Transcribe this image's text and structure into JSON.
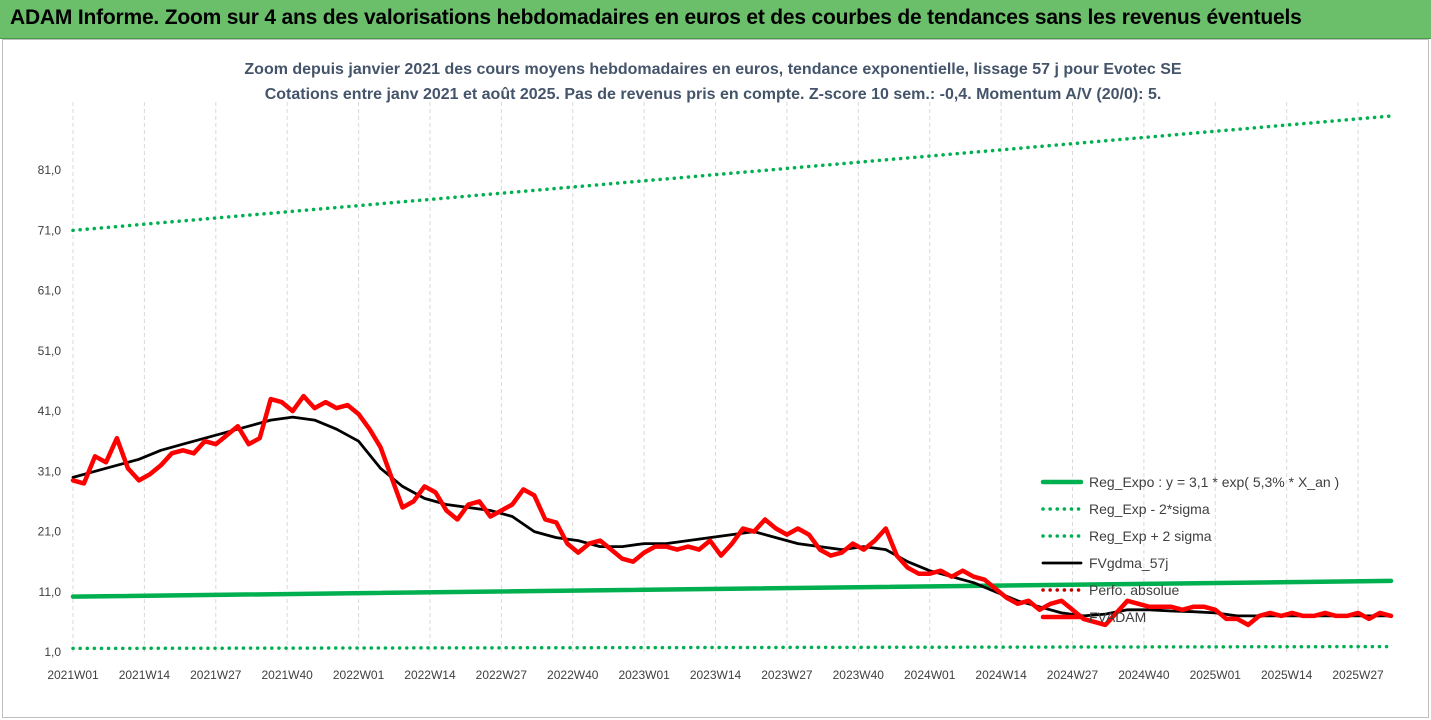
{
  "header": {
    "title": "ADAM Informe. Zoom sur 4 ans des valorisations hebdomadaires en euros et des courbes de tendances sans les revenus éventuels"
  },
  "colors": {
    "header_bg": "#6bbf6b",
    "trend": "#00b050",
    "smooth": "#000000",
    "price": "#ff0000",
    "perfo": "#c00000"
  },
  "chart_data": {
    "type": "line",
    "title_lines": [
      "Zoom depuis janvier 2021 des cours moyens hebdomadaires en euros, tendance exponentielle, lissage 57 j pour Evotec SE",
      "Cotations entre janv 2021 et août 2025. Pas de revenus pris en compte. Z-score 10 sem.: -0,4. Momentum A/V (20/0): 5."
    ],
    "x_tick_labels": [
      "2021W01",
      "2021W14",
      "2021W27",
      "2021W40",
      "2022W01",
      "2022W14",
      "2022W27",
      "2022W40",
      "2023W01",
      "2023W14",
      "2023W27",
      "2023W40",
      "2024W01",
      "2024W14",
      "2024W27",
      "2024W40",
      "2025W01",
      "2025W14",
      "2025W27"
    ],
    "y_tick_labels": [
      "1,0",
      "11,0",
      "21,0",
      "31,0",
      "41,0",
      "51,0",
      "61,0",
      "71,0",
      "81,0"
    ],
    "ylim": [
      1,
      91
    ],
    "x_unit_weeks": "week index from 2021W01 (0) to 2025W32 (240); tick every 13 weeks",
    "xlim": [
      0,
      240
    ],
    "grid": {
      "horizontal": false,
      "vertical": true,
      "vertical_style": "dashed"
    },
    "legend_position": "right",
    "series": [
      {
        "name": "Reg_Expo : y = 3,1 * exp( 5,3% *  X_an )",
        "style": "solid-thick",
        "color": "#00b050",
        "x": [
          0,
          240
        ],
        "y": [
          10.2,
          12.8
        ]
      },
      {
        "name": "Reg_Exp - 2*sigma",
        "style": "dotted",
        "color": "#00b050",
        "x": [
          0,
          240
        ],
        "y": [
          1.6,
          1.9
        ]
      },
      {
        "name": "Reg_Exp + 2 sigma",
        "style": "dotted",
        "color": "#00b050",
        "x": [
          0,
          240
        ],
        "y": [
          71.0,
          90.0
        ]
      },
      {
        "name": "FVgdma_57j",
        "style": "solid",
        "color": "#000000",
        "x": [
          0,
          4,
          8,
          12,
          16,
          20,
          24,
          28,
          32,
          36,
          40,
          44,
          48,
          52,
          56,
          60,
          64,
          68,
          72,
          76,
          80,
          84,
          88,
          92,
          96,
          100,
          104,
          108,
          112,
          116,
          120,
          124,
          128,
          132,
          136,
          140,
          144,
          148,
          152,
          156,
          160,
          164,
          168,
          172,
          176,
          180,
          184,
          188,
          192,
          196,
          200,
          204,
          208,
          212,
          216,
          220,
          224,
          228,
          232,
          236,
          240
        ],
        "y": [
          30.0,
          31.0,
          32.0,
          33.0,
          34.5,
          35.5,
          36.5,
          37.5,
          38.5,
          39.5,
          40.0,
          39.5,
          38.0,
          36.0,
          31.5,
          28.5,
          26.5,
          25.5,
          25.0,
          24.5,
          23.5,
          21.0,
          20.0,
          19.5,
          18.5,
          18.5,
          19.0,
          19.0,
          19.5,
          20.0,
          20.5,
          21.0,
          20.0,
          19.0,
          18.5,
          18.0,
          18.5,
          18.0,
          16.0,
          14.5,
          13.5,
          12.5,
          11.0,
          9.5,
          8.5,
          7.5,
          7.0,
          7.3,
          8.0,
          8.0,
          7.8,
          7.7,
          7.5,
          7.0,
          7.0,
          7.0,
          7.0,
          7.0,
          7.0,
          7.0,
          7.0
        ]
      },
      {
        "name": "Perfo. absolue",
        "style": "dotted",
        "color": "#c00000",
        "x": [],
        "y": []
      },
      {
        "name": "FVADAM",
        "style": "solid-thick",
        "color": "#ff0000",
        "x": [
          0,
          2,
          4,
          6,
          8,
          10,
          12,
          14,
          16,
          18,
          20,
          22,
          24,
          26,
          28,
          30,
          32,
          34,
          36,
          38,
          40,
          42,
          44,
          46,
          48,
          50,
          52,
          54,
          56,
          58,
          60,
          62,
          64,
          66,
          68,
          70,
          72,
          74,
          76,
          78,
          80,
          82,
          84,
          86,
          88,
          90,
          92,
          94,
          96,
          98,
          100,
          102,
          104,
          106,
          108,
          110,
          112,
          114,
          116,
          118,
          120,
          122,
          124,
          126,
          128,
          130,
          132,
          134,
          136,
          138,
          140,
          142,
          144,
          146,
          148,
          150,
          152,
          154,
          156,
          158,
          160,
          162,
          164,
          166,
          168,
          170,
          172,
          174,
          176,
          178,
          180,
          182,
          184,
          186,
          188,
          190,
          192,
          194,
          196,
          198,
          200,
          202,
          204,
          206,
          208,
          210,
          212,
          214,
          216,
          218,
          220,
          222,
          224,
          226,
          228,
          230,
          232,
          234,
          236,
          238,
          240
        ],
        "y": [
          29.5,
          29.0,
          33.5,
          32.5,
          36.5,
          31.5,
          29.5,
          30.5,
          32.0,
          34.0,
          34.5,
          34.0,
          36.0,
          35.5,
          37.0,
          38.5,
          35.5,
          36.5,
          43.0,
          42.5,
          41.0,
          43.5,
          41.5,
          42.5,
          41.5,
          42.0,
          40.5,
          38.0,
          35.0,
          30.0,
          25.0,
          26.0,
          28.5,
          27.5,
          24.5,
          23.0,
          25.5,
          26.0,
          23.5,
          24.5,
          25.5,
          28.0,
          27.0,
          23.0,
          22.5,
          19.0,
          17.5,
          19.0,
          19.5,
          18.0,
          16.5,
          16.0,
          17.5,
          18.5,
          18.5,
          18.0,
          18.5,
          18.0,
          19.5,
          17.0,
          19.0,
          21.5,
          21.0,
          23.0,
          21.5,
          20.5,
          21.5,
          20.5,
          18.0,
          17.0,
          17.5,
          19.0,
          18.0,
          19.5,
          21.5,
          17.0,
          15.0,
          14.0,
          14.0,
          14.5,
          13.5,
          14.5,
          13.5,
          13.0,
          11.5,
          10.0,
          9.0,
          9.5,
          8.0,
          9.0,
          9.5,
          8.0,
          6.5,
          6.0,
          5.5,
          7.5,
          9.5,
          9.0,
          8.5,
          8.5,
          8.5,
          8.0,
          8.5,
          8.5,
          8.0,
          6.5,
          6.5,
          5.5,
          7.0,
          7.5,
          7.0,
          7.5,
          7.0,
          7.0,
          7.5,
          7.0,
          7.0,
          7.5,
          6.5,
          7.5,
          7.0
        ]
      }
    ]
  }
}
